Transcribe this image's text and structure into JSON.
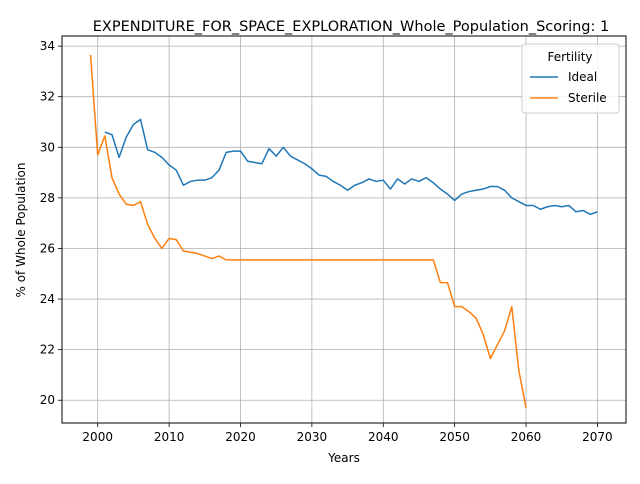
{
  "chart_data": {
    "type": "line",
    "title": "EXPENDITURE_FOR_SPACE_EXPLORATION_Whole_Population_Scoring: 1",
    "xlabel": "Years",
    "ylabel": "% of Whole Population",
    "xlim": [
      1995,
      2074
    ],
    "ylim": [
      19.1,
      34.4
    ],
    "xticks": [
      2000,
      2010,
      2020,
      2030,
      2040,
      2050,
      2060,
      2070
    ],
    "yticks": [
      20,
      22,
      24,
      26,
      28,
      30,
      32,
      34
    ],
    "grid": true,
    "legend": {
      "title": "Fertility",
      "position": "top-right"
    },
    "series": [
      {
        "name": "Ideal",
        "color": "#1f77b4",
        "x": [
          2001,
          2002,
          2003,
          2004,
          2005,
          2006,
          2007,
          2008,
          2009,
          2010,
          2011,
          2012,
          2013,
          2014,
          2015,
          2016,
          2017,
          2018,
          2019,
          2020,
          2021,
          2022,
          2023,
          2024,
          2025,
          2026,
          2027,
          2028,
          2029,
          2030,
          2031,
          2032,
          2033,
          2034,
          2035,
          2036,
          2037,
          2038,
          2039,
          2040,
          2041,
          2042,
          2043,
          2044,
          2045,
          2046,
          2047,
          2048,
          2049,
          2050,
          2051,
          2052,
          2053,
          2054,
          2055,
          2056,
          2057,
          2058,
          2059,
          2060,
          2061,
          2062,
          2063,
          2064,
          2065,
          2066,
          2067,
          2068,
          2069,
          2070
        ],
        "y": [
          30.6,
          30.5,
          29.6,
          30.4,
          30.9,
          31.1,
          29.9,
          29.8,
          29.6,
          29.3,
          29.1,
          28.5,
          28.65,
          28.7,
          28.7,
          28.8,
          29.1,
          29.8,
          29.85,
          29.85,
          29.45,
          29.4,
          29.35,
          29.95,
          29.65,
          30.0,
          29.65,
          29.5,
          29.35,
          29.15,
          28.9,
          28.85,
          28.65,
          28.5,
          28.3,
          28.5,
          28.6,
          28.75,
          28.65,
          28.7,
          28.35,
          28.75,
          28.55,
          28.75,
          28.65,
          28.8,
          28.6,
          28.35,
          28.15,
          27.9,
          28.15,
          28.25,
          28.3,
          28.35,
          28.45,
          28.45,
          28.3,
          28.0,
          27.85,
          27.7,
          27.7,
          27.55,
          27.65,
          27.7,
          27.65,
          27.7,
          27.45,
          27.5,
          27.35,
          27.45
        ]
      },
      {
        "name": "Sterile",
        "color": "#ff7f0e",
        "x": [
          1999,
          2000,
          2001,
          2002,
          2003,
          2004,
          2005,
          2006,
          2007,
          2008,
          2009,
          2010,
          2011,
          2012,
          2013,
          2014,
          2015,
          2016,
          2017,
          2018,
          2019,
          2020,
          2021,
          2022,
          2023,
          2024,
          2025,
          2026,
          2027,
          2028,
          2029,
          2030,
          2031,
          2032,
          2033,
          2034,
          2035,
          2036,
          2037,
          2038,
          2039,
          2040,
          2041,
          2042,
          2043,
          2044,
          2045,
          2046,
          2047,
          2048,
          2049,
          2050,
          2051,
          2052,
          2053,
          2054,
          2055,
          2056,
          2057,
          2058,
          2059,
          2060
        ],
        "y": [
          33.65,
          29.7,
          30.45,
          28.8,
          28.15,
          27.75,
          27.7,
          27.85,
          26.95,
          26.4,
          26.0,
          26.4,
          26.35,
          25.9,
          25.85,
          25.8,
          25.7,
          25.6,
          25.7,
          25.55,
          25.55,
          25.55,
          25.55,
          25.55,
          25.55,
          25.55,
          25.55,
          25.55,
          25.55,
          25.55,
          25.55,
          25.55,
          25.55,
          25.55,
          25.55,
          25.55,
          25.55,
          25.55,
          25.55,
          25.55,
          25.55,
          25.55,
          25.55,
          25.55,
          25.55,
          25.55,
          25.55,
          25.55,
          25.55,
          24.65,
          24.65,
          23.7,
          23.7,
          23.5,
          23.25,
          22.6,
          21.65,
          22.2,
          22.75,
          23.7,
          21.15,
          19.7
        ]
      }
    ]
  }
}
